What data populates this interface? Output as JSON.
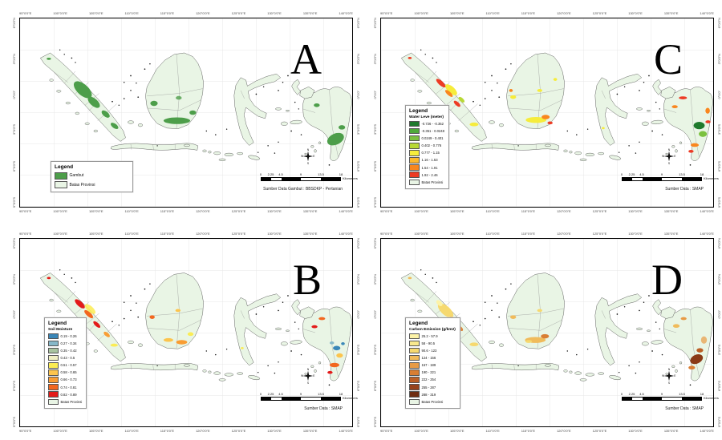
{
  "figure": {
    "background": "#ffffff",
    "type": "four-panel-indonesia-map-figure"
  },
  "axis": {
    "lon_ticks": [
      "95°0'0\"E",
      "100°0'0\"E",
      "105°0'0\"E",
      "110°0'0\"E",
      "115°0'0\"E",
      "120°0'0\"E",
      "125°0'0\"E",
      "130°0'0\"E",
      "135°0'0\"E",
      "140°0'0\"E"
    ],
    "lat_ticks": [
      "6°0'0\"N",
      "3°0'0\"N",
      "0°0'0\"",
      "3°0'0\"S",
      "6°0'0\"S",
      "9°0'0\"S"
    ]
  },
  "scalebar": {
    "ticks": [
      "0",
      "2.25",
      "4.5",
      "9",
      "13.5",
      "18"
    ],
    "positions": [
      0,
      12.5,
      25,
      50,
      75,
      100
    ],
    "unit": "Kilometers"
  },
  "compass": {
    "n": "N",
    "s": "S",
    "e": "E",
    "w": "W"
  },
  "colors": {
    "province_fill": "#e9f5e5",
    "peat_green": "#4d9e4a",
    "frame": "#000000"
  },
  "panels": [
    {
      "letter": "A",
      "position": "top-left",
      "theme": "Peatland (Gambut)",
      "source": "Sumber Data Gambut : BBSDKP - Pertanian",
      "legend": {
        "title": "Legend",
        "items": [
          {
            "label": "Gambut",
            "color": "#4d9e4a"
          },
          {
            "label": "Batas Provinsi",
            "color": "#e9f5e5"
          }
        ]
      }
    },
    {
      "letter": "C",
      "position": "top-right",
      "theme": "Water Level",
      "source": "Sumber Data : SMAP",
      "legend": {
        "title": "Legend",
        "subtitle": "Water Leve (meter)",
        "items": [
          {
            "label": "-0.726 - -0.352",
            "color": "#1f7a2d"
          },
          {
            "label": "-0.351 - 0.0248",
            "color": "#4faa3b"
          },
          {
            "label": "0.0249 - 0.401",
            "color": "#7cc140"
          },
          {
            "label": "0.402 - 0.776",
            "color": "#b8d935"
          },
          {
            "label": "0.777 - 1.15",
            "color": "#f6ec3b"
          },
          {
            "label": "1.16 - 1.53",
            "color": "#fdb92c"
          },
          {
            "label": "1.54 - 1.91",
            "color": "#f9861e"
          },
          {
            "label": "1.92 - 2.46",
            "color": "#ed3b24"
          },
          {
            "label": "Batas Provinsi",
            "color": "#e9f5e5"
          }
        ]
      }
    },
    {
      "letter": "B",
      "position": "bottom-left",
      "theme": "Soil Moisture",
      "source": "Sumber Data : SMAP",
      "legend": {
        "title": "Legend",
        "subtitle": "Soil Moisture",
        "items": [
          {
            "label": "0.19 - 0.26",
            "color": "#3a87b8"
          },
          {
            "label": "0.27 - 0.34",
            "color": "#86b8c9"
          },
          {
            "label": "0.35 - 0.42",
            "color": "#a9c4a0"
          },
          {
            "label": "0.43 - 0.5",
            "color": "#f0efc3"
          },
          {
            "label": "0.51 - 0.57",
            "color": "#fbec54"
          },
          {
            "label": "0.58 - 0.65",
            "color": "#fcc44d"
          },
          {
            "label": "0.66 - 0.73",
            "color": "#f99d33"
          },
          {
            "label": "0.74 - 0.81",
            "color": "#f2671f"
          },
          {
            "label": "0.82 - 0.89",
            "color": "#e31b1a"
          },
          {
            "label": "Batas Provinsi",
            "color": "#e9f5e5"
          }
        ]
      }
    },
    {
      "letter": "D",
      "position": "bottom-right",
      "theme": "Carbon Emission",
      "source": "Sumber Data : SMAP",
      "legend": {
        "title": "Legend",
        "subtitle": "Carbon Emission (g/km2)",
        "items": [
          {
            "label": "25.2 - 57.9",
            "color": "#fdf3a7"
          },
          {
            "label": "58 - 90.5",
            "color": "#f9e98d"
          },
          {
            "label": "90.6 - 123",
            "color": "#f6d96f"
          },
          {
            "label": "124 - 156",
            "color": "#f0bb5b"
          },
          {
            "label": "157 - 189",
            "color": "#e89b45"
          },
          {
            "label": "190 - 221",
            "color": "#d97e33"
          },
          {
            "label": "222 - 254",
            "color": "#bc5f26"
          },
          {
            "label": "255 - 287",
            "color": "#98431c"
          },
          {
            "label": "288 - 319",
            "color": "#6f2d12"
          },
          {
            "label": "Batas Provinsi",
            "color": "#e9f5e5"
          }
        ]
      }
    }
  ]
}
